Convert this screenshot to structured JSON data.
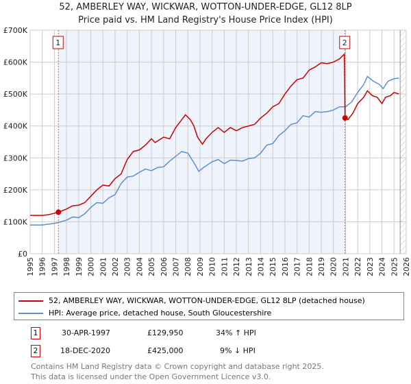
{
  "title": "52, AMBERLEY WAY, WICKWAR, WOTTON-UNDER-EDGE, GL12 8LP",
  "subtitle": "Price paid vs. HM Land Registry's House Price Index (HPI)",
  "colors": {
    "property": "#cc0000",
    "hpi": "#5b8fd4",
    "shade": "#eef3fc",
    "grid": "#cccccc"
  },
  "chart_data": {
    "type": "line",
    "title": "52, AMBERLEY WAY, WICKWAR, WOTTON-UNDER-EDGE, GL12 8LP",
    "xlim": [
      1995,
      2026
    ],
    "ylim": [
      0,
      700000
    ],
    "grid": true,
    "x_ticks": [
      "1995",
      "1996",
      "1997",
      "1998",
      "1999",
      "2000",
      "2001",
      "2002",
      "2003",
      "2004",
      "2005",
      "2006",
      "2007",
      "2008",
      "2009",
      "2010",
      "2011",
      "2012",
      "2013",
      "2014",
      "2015",
      "2016",
      "2017",
      "2018",
      "2019",
      "2020",
      "2021",
      "2022",
      "2023",
      "2024",
      "2025",
      "2026"
    ],
    "y_ticks": [
      {
        "v": 0,
        "label": "£0"
      },
      {
        "v": 100000,
        "label": "£100K"
      },
      {
        "v": 200000,
        "label": "£200K"
      },
      {
        "v": 300000,
        "label": "£300K"
      },
      {
        "v": 400000,
        "label": "£400K"
      },
      {
        "v": 500000,
        "label": "£500K"
      },
      {
        "v": 600000,
        "label": "£600K"
      },
      {
        "v": 700000,
        "label": "£700K"
      }
    ],
    "shaded_range": [
      1997.33,
      2020.96
    ],
    "hatched_from": 2025.5,
    "series": [
      {
        "name": "52, AMBERLEY WAY, WICKWAR, WOTTON-UNDER-EDGE, GL12 8LP (detached house)",
        "color": "#cc0000",
        "x": [
          1995,
          1996,
          1996.5,
          1997.33,
          1998,
          1998.5,
          1999,
          1999.5,
          2000,
          2000.5,
          2001,
          2001.5,
          2002,
          2002.5,
          2003,
          2003.5,
          2004,
          2004.5,
          2005,
          2005.3,
          2006,
          2006.5,
          2007,
          2007.5,
          2007.8,
          2008.2,
          2008.5,
          2008.8,
          2009.2,
          2009.5,
          2010,
          2010.5,
          2011,
          2011.5,
          2012,
          2012.5,
          2013,
          2013.5,
          2014,
          2014.5,
          2015,
          2015.5,
          2016,
          2016.5,
          2017,
          2017.5,
          2018,
          2018.5,
          2019,
          2019.5,
          2020,
          2020.5,
          2020.9,
          2020.96,
          2021.2,
          2021.6,
          2022,
          2022.5,
          2022.8,
          2023.2,
          2023.6,
          2024,
          2024.3,
          2024.7,
          2025,
          2025.4
        ],
        "y": [
          120000,
          120000,
          122000,
          129950,
          140000,
          150000,
          152000,
          160000,
          180000,
          200000,
          215000,
          212000,
          235000,
          250000,
          295000,
          320000,
          325000,
          340000,
          360000,
          348000,
          365000,
          360000,
          395000,
          420000,
          435000,
          420000,
          400000,
          365000,
          343000,
          360000,
          380000,
          395000,
          380000,
          395000,
          385000,
          395000,
          400000,
          405000,
          425000,
          440000,
          460000,
          470000,
          500000,
          525000,
          545000,
          550000,
          575000,
          585000,
          598000,
          595000,
          600000,
          610000,
          625000,
          425000,
          420000,
          440000,
          470000,
          490000,
          510000,
          495000,
          490000,
          470000,
          490000,
          495000,
          505000,
          500000
        ]
      },
      {
        "name": "HPI: Average price, detached house, South Gloucestershire",
        "color": "#5b8fd4",
        "x": [
          1995,
          1996,
          1997,
          1997.33,
          1998,
          1998.5,
          1999,
          1999.5,
          2000,
          2000.5,
          2001,
          2001.5,
          2002,
          2002.5,
          2003,
          2003.5,
          2004,
          2004.5,
          2005,
          2005.5,
          2006,
          2006.5,
          2007,
          2007.5,
          2008,
          2008.5,
          2008.9,
          2009.3,
          2010,
          2010.5,
          2011,
          2011.5,
          2012,
          2012.5,
          2013,
          2013.5,
          2014,
          2014.5,
          2015,
          2015.5,
          2016,
          2016.5,
          2017,
          2017.5,
          2018,
          2018.5,
          2019,
          2019.5,
          2020,
          2020.5,
          2021,
          2021.5,
          2022,
          2022.5,
          2022.8,
          2023.3,
          2023.8,
          2024.1,
          2024.5,
          2025,
          2025.4
        ],
        "y": [
          90000,
          90000,
          95000,
          98000,
          105000,
          115000,
          113000,
          125000,
          145000,
          160000,
          158000,
          175000,
          185000,
          220000,
          240000,
          243000,
          255000,
          265000,
          260000,
          270000,
          272000,
          290000,
          305000,
          320000,
          315000,
          285000,
          258000,
          270000,
          288000,
          295000,
          282000,
          293000,
          292000,
          290000,
          298000,
          300000,
          315000,
          340000,
          345000,
          370000,
          385000,
          405000,
          410000,
          432000,
          428000,
          445000,
          443000,
          445000,
          450000,
          460000,
          460000,
          475000,
          505000,
          530000,
          555000,
          540000,
          530000,
          517000,
          540000,
          548000,
          550000
        ]
      }
    ],
    "annotations": [
      {
        "label": "1",
        "x": 1997.33,
        "y": 129950
      },
      {
        "label": "2",
        "x": 2020.96,
        "y": 425000
      }
    ]
  },
  "legend": {
    "property": "52, AMBERLEY WAY, WICKWAR, WOTTON-UNDER-EDGE, GL12 8LP (detached house)",
    "hpi": "HPI: Average price, detached house, South Gloucestershire"
  },
  "sales": [
    {
      "num": "1",
      "date": "30-APR-1997",
      "price": "£129,950",
      "hpi": "34% ↑ HPI"
    },
    {
      "num": "2",
      "date": "18-DEC-2020",
      "price": "£425,000",
      "hpi": "9% ↓ HPI"
    }
  ],
  "footer": {
    "line1": "Contains HM Land Registry data © Crown copyright and database right 2025.",
    "line2": "This data is licensed under the Open Government Licence v3.0."
  }
}
